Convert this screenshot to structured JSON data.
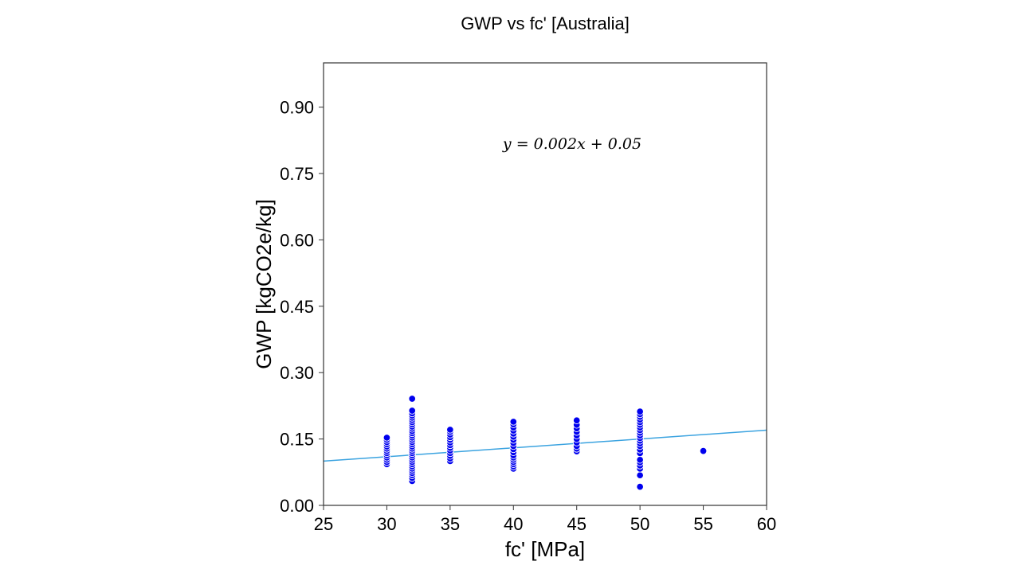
{
  "chart_data": {
    "type": "scatter",
    "title": "GWP vs fc' [Australia]",
    "xlabel": "fc' [MPa]",
    "ylabel": "GWP [kgCO2e/kg]",
    "xlim": [
      25,
      60
    ],
    "ylim": [
      0,
      1.0
    ],
    "xticks": [
      25,
      30,
      35,
      40,
      45,
      50,
      55,
      60
    ],
    "xtick_labels": [
      "25",
      "30",
      "35",
      "40",
      "45",
      "50",
      "55",
      "60"
    ],
    "yticks": [
      0,
      0.15,
      0.3,
      0.45,
      0.6,
      0.75,
      0.9
    ],
    "ytick_labels": [
      "0.00",
      "0.15",
      "0.30",
      "0.45",
      "0.60",
      "0.75",
      "0.90"
    ],
    "grid": false,
    "legend": "none",
    "annotation": "y = 0.002x + 0.05",
    "trendline": {
      "slope": 0.002,
      "intercept": 0.05,
      "x_range": [
        25,
        60
      ],
      "color": "#3ba3e0"
    },
    "point_color": "#0000ee",
    "series": [
      {
        "points": [
          [
            30,
            0.093
          ],
          [
            30,
            0.098
          ],
          [
            30,
            0.103
          ],
          [
            30,
            0.108
          ],
          [
            30,
            0.113
          ],
          [
            30,
            0.118
          ],
          [
            30,
            0.123
          ],
          [
            30,
            0.128
          ],
          [
            30,
            0.133
          ],
          [
            30,
            0.138
          ],
          [
            30,
            0.143
          ],
          [
            30,
            0.148
          ],
          [
            30,
            0.153
          ],
          [
            32,
            0.055
          ],
          [
            32,
            0.062
          ],
          [
            32,
            0.068
          ],
          [
            32,
            0.073
          ],
          [
            32,
            0.078
          ],
          [
            32,
            0.083
          ],
          [
            32,
            0.088
          ],
          [
            32,
            0.093
          ],
          [
            32,
            0.098
          ],
          [
            32,
            0.103
          ],
          [
            32,
            0.108
          ],
          [
            32,
            0.113
          ],
          [
            32,
            0.118
          ],
          [
            32,
            0.123
          ],
          [
            32,
            0.128
          ],
          [
            32,
            0.133
          ],
          [
            32,
            0.138
          ],
          [
            32,
            0.143
          ],
          [
            32,
            0.148
          ],
          [
            32,
            0.153
          ],
          [
            32,
            0.158
          ],
          [
            32,
            0.163
          ],
          [
            32,
            0.168
          ],
          [
            32,
            0.173
          ],
          [
            32,
            0.178
          ],
          [
            32,
            0.183
          ],
          [
            32,
            0.188
          ],
          [
            32,
            0.193
          ],
          [
            32,
            0.198
          ],
          [
            32,
            0.203
          ],
          [
            32,
            0.208
          ],
          [
            32,
            0.214
          ],
          [
            32,
            0.241
          ],
          [
            35,
            0.1
          ],
          [
            35,
            0.106
          ],
          [
            35,
            0.112
          ],
          [
            35,
            0.118
          ],
          [
            35,
            0.124
          ],
          [
            35,
            0.13
          ],
          [
            35,
            0.136
          ],
          [
            35,
            0.142
          ],
          [
            35,
            0.148
          ],
          [
            35,
            0.154
          ],
          [
            35,
            0.16
          ],
          [
            35,
            0.166
          ],
          [
            35,
            0.171
          ],
          [
            40,
            0.083
          ],
          [
            40,
            0.088
          ],
          [
            40,
            0.093
          ],
          [
            40,
            0.098
          ],
          [
            40,
            0.103
          ],
          [
            40,
            0.108
          ],
          [
            40,
            0.113
          ],
          [
            40,
            0.12
          ],
          [
            40,
            0.127
          ],
          [
            40,
            0.134
          ],
          [
            40,
            0.141
          ],
          [
            40,
            0.148
          ],
          [
            40,
            0.155
          ],
          [
            40,
            0.162
          ],
          [
            40,
            0.169
          ],
          [
            40,
            0.176
          ],
          [
            40,
            0.183
          ],
          [
            40,
            0.189
          ],
          [
            45,
            0.122
          ],
          [
            45,
            0.128
          ],
          [
            45,
            0.134
          ],
          [
            45,
            0.142
          ],
          [
            45,
            0.15
          ],
          [
            45,
            0.158
          ],
          [
            45,
            0.166
          ],
          [
            45,
            0.174
          ],
          [
            45,
            0.182
          ],
          [
            45,
            0.192
          ],
          [
            50,
            0.042
          ],
          [
            50,
            0.068
          ],
          [
            50,
            0.083
          ],
          [
            50,
            0.09
          ],
          [
            50,
            0.097
          ],
          [
            50,
            0.103
          ],
          [
            50,
            0.118
          ],
          [
            50,
            0.126
          ],
          [
            50,
            0.134
          ],
          [
            50,
            0.14
          ],
          [
            50,
            0.146
          ],
          [
            50,
            0.152
          ],
          [
            50,
            0.158
          ],
          [
            50,
            0.164
          ],
          [
            50,
            0.17
          ],
          [
            50,
            0.176
          ],
          [
            50,
            0.182
          ],
          [
            50,
            0.188
          ],
          [
            50,
            0.194
          ],
          [
            50,
            0.2
          ],
          [
            50,
            0.206
          ],
          [
            50,
            0.212
          ],
          [
            55,
            0.123
          ]
        ]
      }
    ]
  }
}
